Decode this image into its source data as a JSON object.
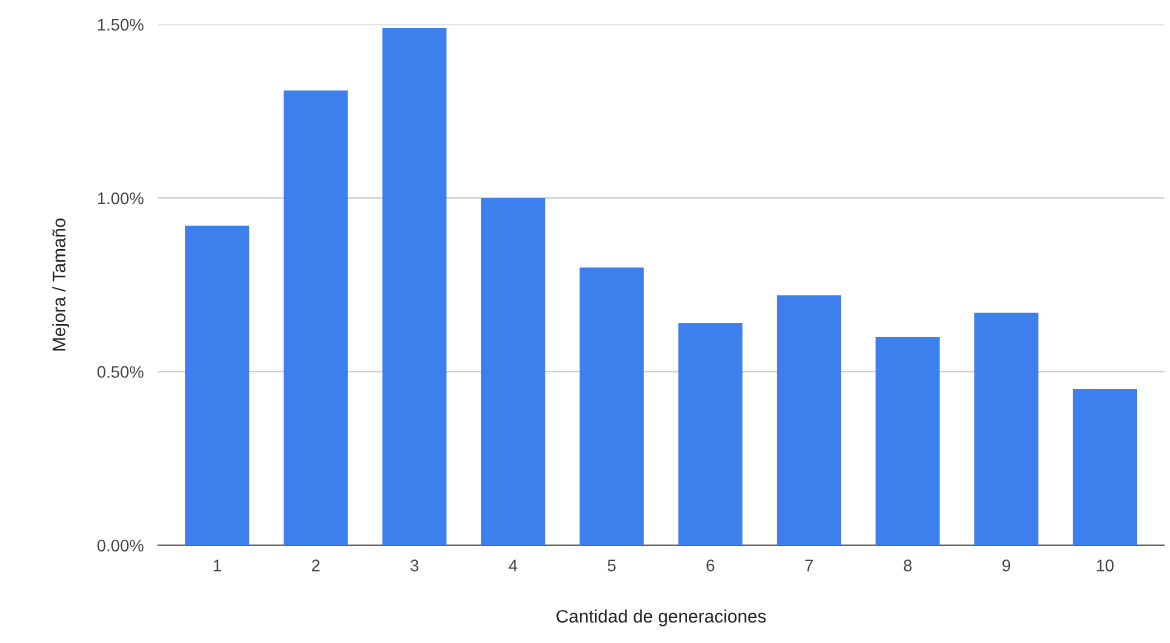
{
  "chart_data": {
    "type": "bar",
    "xlabel": "Cantidad de generaciones",
    "ylabel": "Mejora / Tamaño",
    "categories": [
      "1",
      "2",
      "3",
      "4",
      "5",
      "6",
      "7",
      "8",
      "9",
      "10"
    ],
    "values": [
      0.92,
      1.31,
      1.49,
      1.0,
      0.8,
      0.64,
      0.72,
      0.6,
      0.67,
      0.45
    ],
    "color": "#3d7fec",
    "ylim": [
      0,
      1.5
    ],
    "yticks": [
      {
        "value": 0,
        "label": "0.00%"
      },
      {
        "value": 0.5,
        "label": "0.50%"
      },
      {
        "value": 1.0,
        "label": "1.00%"
      },
      {
        "value": 1.5,
        "label": "1.50%"
      }
    ],
    "grid": "y"
  }
}
